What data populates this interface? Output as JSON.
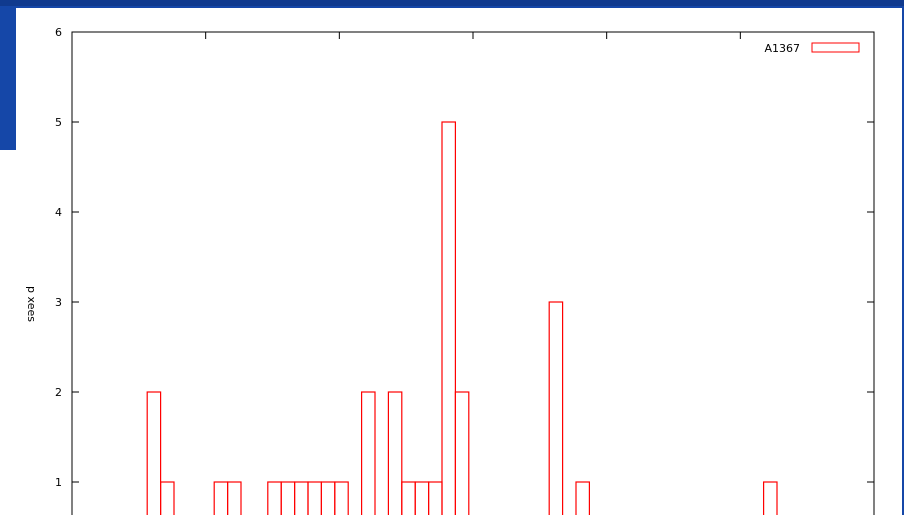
{
  "colors": {
    "background": "#1547a8",
    "plot_bg": "#ffffff",
    "series": "#ff0000",
    "axis": "#000000"
  },
  "chart_data": {
    "type": "bar",
    "style": "outline-histogram",
    "ylabel": "p xees",
    "xlabel": "",
    "title": "",
    "ylim": [
      0,
      6
    ],
    "yticks": [
      "6",
      "5",
      "4",
      "3",
      "2",
      "1"
    ],
    "grid": false,
    "legend_position": "top-right",
    "series": [
      {
        "name": "A1367",
        "values": [
          0,
          0,
          0,
          0,
          0,
          0,
          0,
          0,
          2,
          1,
          0,
          0,
          0,
          1,
          1,
          0,
          0,
          1,
          1,
          1,
          1,
          1,
          1,
          0,
          2,
          0,
          2,
          1,
          1,
          1,
          5,
          2,
          0,
          0,
          0,
          0,
          0,
          0,
          3,
          0,
          1,
          0,
          0,
          0,
          0,
          0,
          0,
          0,
          0,
          0,
          0,
          0,
          0,
          0,
          1,
          0,
          0,
          0,
          0,
          0
        ]
      }
    ]
  }
}
